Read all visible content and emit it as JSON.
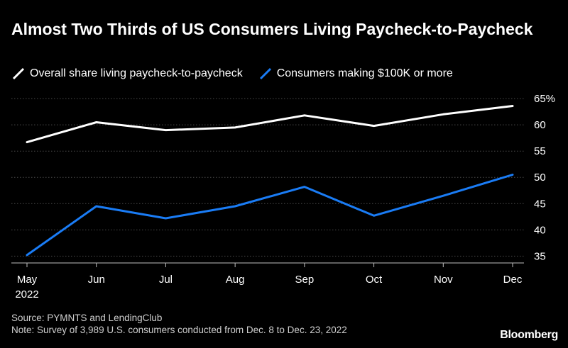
{
  "title": "Almost Two Thirds of US Consumers Living Paycheck-to-Paycheck",
  "source": "Source: PYMNTS and LendingClub",
  "note": "Note: Survey of 3,989 U.S. consumers conducted from Dec. 8 to Dec. 23, 2022",
  "brand": "Bloomberg",
  "chart_data": {
    "type": "line",
    "categories": [
      "May",
      "Jun",
      "Jul",
      "Aug",
      "Sep",
      "Oct",
      "Nov",
      "Dec"
    ],
    "year_label": "2022",
    "series": [
      {
        "name": "Overall share living paycheck-to-paycheck",
        "color": "#ffffff",
        "values": [
          56.7,
          60.5,
          59.0,
          59.5,
          61.8,
          59.8,
          62.0,
          63.6
        ]
      },
      {
        "name": "Consumers making $100K or more",
        "color": "#1a7cf5",
        "values": [
          35.2,
          44.5,
          42.2,
          44.5,
          48.2,
          42.7,
          46.5,
          50.5
        ]
      }
    ],
    "ylim": [
      33.7,
      66.5
    ],
    "yticks": [
      35,
      40,
      45,
      50,
      55,
      60,
      65
    ],
    "ytick_labels": [
      "35",
      "40",
      "45",
      "50",
      "55",
      "60",
      "65%"
    ],
    "grid": true,
    "legend_position": "top-left",
    "xlabel": "",
    "ylabel": ""
  }
}
